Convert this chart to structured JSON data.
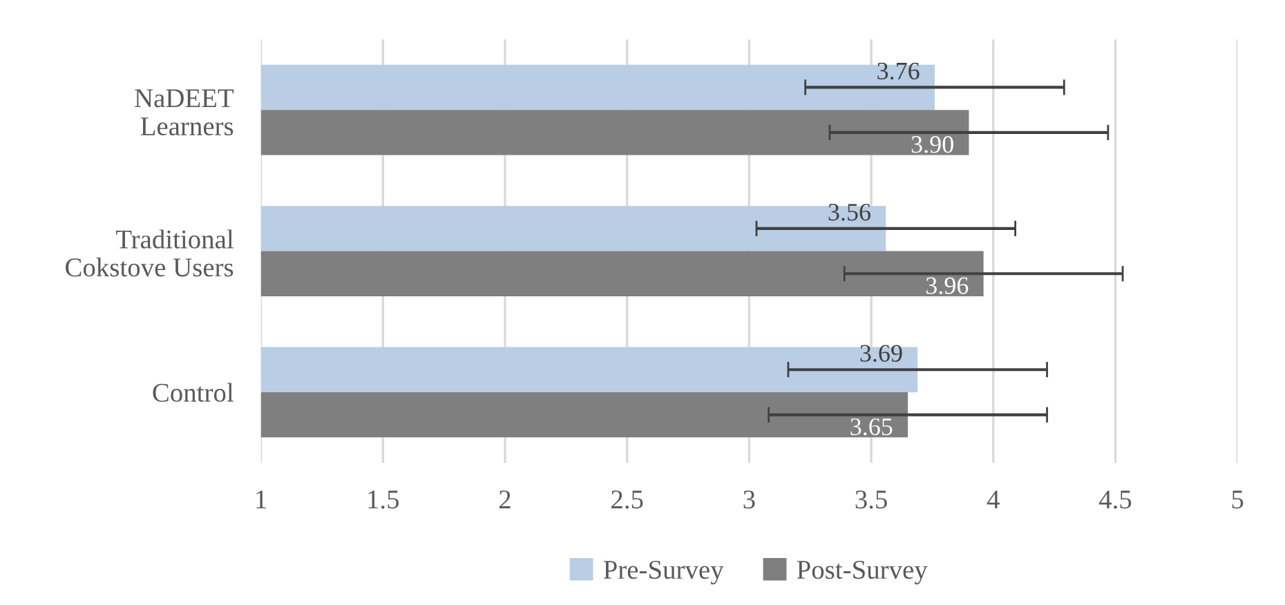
{
  "chart_data": {
    "type": "bar",
    "orientation": "horizontal",
    "categories": [
      "NaDEET\nLearners",
      "Traditional\nCokstove Users",
      "Control"
    ],
    "series": [
      {
        "name": "Pre-Survey",
        "color": "#b9cde5",
        "values": [
          3.76,
          3.56,
          3.69
        ],
        "errors": [
          0.53,
          0.53,
          0.53
        ],
        "value_labels": [
          "3.76",
          "3.56",
          "3.69"
        ]
      },
      {
        "name": "Post-Survey",
        "color": "#7f7f7f",
        "values": [
          3.9,
          3.96,
          3.65
        ],
        "errors": [
          0.57,
          0.57,
          0.57
        ],
        "value_labels": [
          "3.90",
          "3.96",
          "3.65"
        ]
      }
    ],
    "xlim": [
      1,
      5
    ],
    "xticks": [
      1,
      {
        "value": 1.5,
        "label": "1.5"
      },
      2,
      {
        "value": 2.5,
        "label": "2.5"
      },
      3,
      {
        "value": 3.5,
        "label": "3.5"
      },
      4,
      {
        "value": 4.5,
        "label": "4.5"
      },
      5
    ],
    "grid": "x",
    "legend": "bottom"
  }
}
